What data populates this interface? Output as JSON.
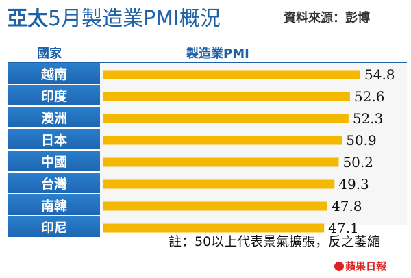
{
  "title": {
    "bold": "亞太",
    "light": "5月製造業PMI概況"
  },
  "source": "資料來源：彭博",
  "headers": {
    "country": "國家",
    "metric": "製造業PMI"
  },
  "note": "註：50以上代表景氣擴張，反之萎縮",
  "logo": "蘋果日報",
  "colors": {
    "bar": "#f5b800",
    "header_blue": "#1f62a8",
    "cell_blue": "#2272c0"
  },
  "chart_data": {
    "type": "bar",
    "orientation": "horizontal",
    "title": "亞太5月製造業PMI概況",
    "xlabel": "製造業PMI",
    "ylabel": "國家",
    "categories": [
      "越南",
      "印度",
      "澳洲",
      "日本",
      "中國",
      "台灣",
      "南韓",
      "印尼"
    ],
    "values": [
      54.8,
      52.6,
      52.3,
      50.9,
      50.2,
      49.3,
      47.8,
      47.1
    ],
    "value_labels": [
      "54.8",
      "52.6",
      "52.3",
      "50.9",
      "50.2",
      "49.3",
      "47.8",
      "47.1"
    ],
    "grid": false,
    "legend": "none"
  }
}
